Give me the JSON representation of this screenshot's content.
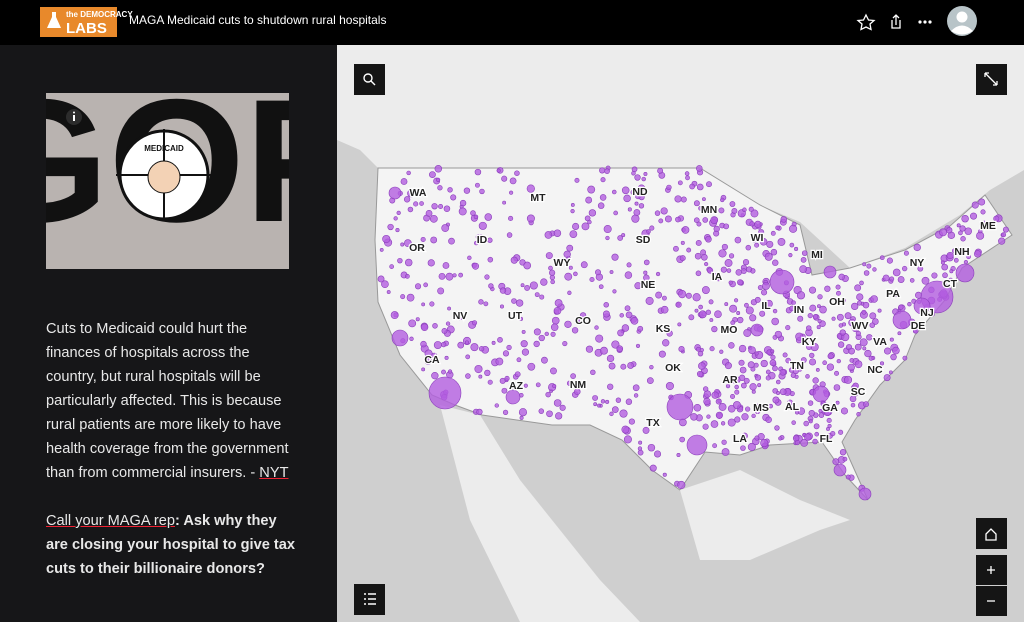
{
  "header": {
    "logo_top": "the DEMOCRACY",
    "logo_bottom": "LABS",
    "title": "MAGA Medicaid cuts to shutdown rural hospitals"
  },
  "sidebar": {
    "image": {
      "big_text": "GOP",
      "badge_text": "MEDICAID"
    },
    "paragraph": "Cuts to Medicaid could hurt the finances of hospitals across the country, but rural hospitals will be particularly affected. This is because rural patients are more likely to have health coverage from the government than from commercial insurers. -",
    "paragraph_link": "NYT",
    "cta_link": "Call your MAGA rep",
    "cta_text": ": Ask why they are closing your hospital to give tax cuts to their billionaire donors?"
  },
  "map": {
    "state_labels": [
      "WA",
      "MT",
      "ND",
      "MN",
      "ME",
      "OR",
      "ID",
      "SD",
      "WI",
      "MI",
      "NY",
      "NH",
      "WY",
      "NE",
      "IA",
      "IL",
      "IN",
      "OH",
      "PA",
      "CT",
      "NJ",
      "NV",
      "UT",
      "CO",
      "KS",
      "MO",
      "KY",
      "WV",
      "DE",
      "VA",
      "CA",
      "OK",
      "AR",
      "TN",
      "NC",
      "AZ",
      "NM",
      "MS",
      "AL",
      "GA",
      "SC",
      "TX",
      "LA",
      "FL"
    ]
  }
}
